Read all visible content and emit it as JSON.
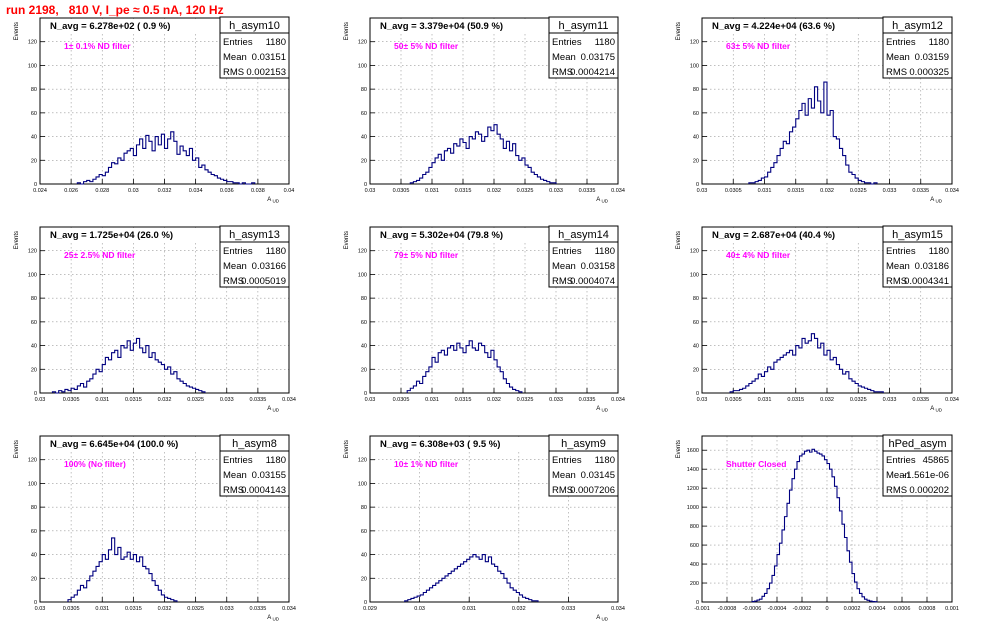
{
  "run_title": "run 2198,   810 V, I_pe ≈ 0.5 nA, 120 Hz",
  "chart_data": [
    {
      "type": "histogram",
      "name": "h_asym10",
      "stats": {
        "Entries": "1180",
        "Mean": "0.03151",
        "RMS": "0.002153"
      },
      "navg": "N_avg = 6.278e+02 ( 0.9 %)",
      "filter": "1± 0.1% ND filter",
      "xlabel": "A_UD",
      "ylabel": "Events",
      "xlim": [
        0.024,
        0.04
      ],
      "ylim": [
        0,
        140
      ],
      "xticks": [
        0.024,
        0.026,
        0.028,
        0.03,
        0.032,
        0.034,
        0.036,
        0.038,
        0.04
      ],
      "xtick_labels": [
        "0.024",
        "0.026",
        "0.028",
        "0.03",
        "0.032",
        "0.034",
        "0.036",
        "0.038",
        "0.04"
      ],
      "yticks": [
        0,
        20,
        40,
        60,
        80,
        100,
        120
      ],
      "ytick_labels": [
        "0",
        "20",
        "40",
        "60",
        "80",
        "100",
        "120"
      ],
      "bin_start": 0.0264,
      "bin_width": 0.0002,
      "values": [
        1,
        0,
        2,
        3,
        2,
        4,
        6,
        8,
        7,
        10,
        14,
        18,
        17,
        22,
        20,
        26,
        28,
        30,
        24,
        33,
        38,
        30,
        41,
        36,
        28,
        40,
        33,
        42,
        30,
        38,
        44,
        36,
        25,
        32,
        28,
        24,
        30,
        20,
        22,
        14,
        16,
        12,
        10,
        8,
        7,
        5,
        4,
        3,
        2,
        2,
        1,
        1,
        0,
        1,
        0,
        0,
        1
      ]
    },
    {
      "type": "histogram",
      "name": "h_asym11",
      "stats": {
        "Entries": "1180",
        "Mean": "0.03175",
        "RMS": "0.0004214"
      },
      "navg": "N_avg = 3.379e+04 (50.9 %)",
      "filter": "50± 5% ND filter",
      "xlabel": "A_UD",
      "ylabel": "Events",
      "xlim": [
        0.03,
        0.034
      ],
      "ylim": [
        0,
        140
      ],
      "xticks": [
        0.03,
        0.0305,
        0.031,
        0.0315,
        0.032,
        0.0325,
        0.033,
        0.0335,
        0.034
      ],
      "xtick_labels": [
        "0.03",
        "0.0305",
        "0.031",
        "0.0315",
        "0.032",
        "0.0325",
        "0.033",
        "0.0335",
        "0.034"
      ],
      "yticks": [
        0,
        20,
        40,
        60,
        80,
        100,
        120
      ],
      "ytick_labels": [
        "0",
        "20",
        "40",
        "60",
        "80",
        "100",
        "120"
      ],
      "bin_start": 0.03065,
      "bin_width": 5e-05,
      "values": [
        1,
        2,
        3,
        5,
        8,
        10,
        14,
        18,
        22,
        25,
        20,
        28,
        30,
        26,
        34,
        32,
        38,
        35,
        30,
        40,
        38,
        44,
        42,
        36,
        40,
        48,
        45,
        50,
        42,
        38,
        30,
        36,
        28,
        34,
        24,
        20,
        22,
        16,
        14,
        10,
        8,
        6,
        4,
        3,
        2,
        1,
        1
      ]
    },
    {
      "type": "histogram",
      "name": "h_asym12",
      "stats": {
        "Entries": "1180",
        "Mean": "0.03159",
        "RMS": "0.000325"
      },
      "navg": "N_avg = 4.224e+04 (63.6 %)",
      "filter": "63± 5% ND filter",
      "xlabel": "A_UD",
      "ylabel": "Events",
      "xlim": [
        0.03,
        0.034
      ],
      "ylim": [
        0,
        140
      ],
      "xticks": [
        0.03,
        0.0305,
        0.031,
        0.0315,
        0.032,
        0.0325,
        0.033,
        0.0335,
        0.034
      ],
      "xtick_labels": [
        "0.03",
        "0.0305",
        "0.031",
        "0.0315",
        "0.032",
        "0.0325",
        "0.033",
        "0.0335",
        "0.034"
      ],
      "yticks": [
        0,
        20,
        40,
        60,
        80,
        100,
        120
      ],
      "ytick_labels": [
        "0",
        "20",
        "40",
        "60",
        "80",
        "100",
        "120"
      ],
      "bin_start": 0.03075,
      "bin_width": 5e-05,
      "values": [
        1,
        1,
        2,
        3,
        5,
        6,
        10,
        14,
        18,
        24,
        30,
        36,
        34,
        44,
        48,
        55,
        62,
        68,
        58,
        72,
        64,
        82,
        70,
        60,
        86,
        58,
        62,
        40,
        38,
        30,
        24,
        16,
        10,
        8,
        5,
        3,
        2,
        1,
        1,
        0,
        1
      ]
    },
    {
      "type": "histogram",
      "name": "h_asym13",
      "stats": {
        "Entries": "1180",
        "Mean": "0.03166",
        "RMS": "0.0005019"
      },
      "navg": "N_avg = 1.725e+04 (26.0 %)",
      "filter": "25± 2.5% ND filter",
      "xlabel": "A_UD",
      "ylabel": "Events",
      "xlim": [
        0.03,
        0.034
      ],
      "ylim": [
        0,
        140
      ],
      "xticks": [
        0.03,
        0.0305,
        0.031,
        0.0315,
        0.032,
        0.0325,
        0.033,
        0.0335,
        0.034
      ],
      "xtick_labels": [
        "0.03",
        "0.0305",
        "0.031",
        "0.0315",
        "0.032",
        "0.0325",
        "0.033",
        "0.0335",
        "0.034"
      ],
      "yticks": [
        0,
        20,
        40,
        60,
        80,
        100,
        120
      ],
      "ytick_labels": [
        "0",
        "20",
        "40",
        "60",
        "80",
        "100",
        "120"
      ],
      "bin_start": 0.0302,
      "bin_width": 5e-05,
      "values": [
        1,
        0,
        2,
        1,
        3,
        2,
        4,
        3,
        6,
        8,
        5,
        10,
        12,
        16,
        20,
        18,
        24,
        30,
        28,
        34,
        36,
        30,
        40,
        38,
        44,
        36,
        42,
        46,
        38,
        34,
        40,
        30,
        34,
        28,
        26,
        24,
        20,
        22,
        16,
        18,
        12,
        10,
        8,
        6,
        5,
        4,
        3,
        2,
        1
      ]
    },
    {
      "type": "histogram",
      "name": "h_asym14",
      "stats": {
        "Entries": "1180",
        "Mean": "0.03158",
        "RMS": "0.0004074"
      },
      "navg": "N_avg = 5.302e+04 (79.8 %)",
      "filter": "79± 5% ND filter",
      "xlabel": "A_UD",
      "ylabel": "Events",
      "xlim": [
        0.03,
        0.034
      ],
      "ylim": [
        0,
        140
      ],
      "xticks": [
        0.03,
        0.0305,
        0.031,
        0.0315,
        0.032,
        0.0325,
        0.033,
        0.0335,
        0.034
      ],
      "xtick_labels": [
        "0.03",
        "0.0305",
        "0.031",
        "0.0315",
        "0.032",
        "0.0325",
        "0.033",
        "0.0335",
        "0.034"
      ],
      "yticks": [
        0,
        20,
        40,
        60,
        80,
        100,
        120
      ],
      "ytick_labels": [
        "0",
        "20",
        "40",
        "60",
        "80",
        "100",
        "120"
      ],
      "bin_start": 0.0306,
      "bin_width": 5e-05,
      "values": [
        2,
        4,
        6,
        10,
        8,
        14,
        18,
        22,
        30,
        26,
        34,
        36,
        32,
        38,
        40,
        36,
        42,
        38,
        34,
        40,
        44,
        38,
        36,
        42,
        40,
        34,
        30,
        36,
        28,
        22,
        18,
        12,
        8,
        5,
        3,
        2,
        1
      ]
    },
    {
      "type": "histogram",
      "name": "h_asym15",
      "stats": {
        "Entries": "1180",
        "Mean": "0.03186",
        "RMS": "0.0004341"
      },
      "navg": "N_avg = 2.687e+04 (40.4 %)",
      "filter": "40± 4% ND filter",
      "xlabel": "A_UD",
      "ylabel": "Events",
      "xlim": [
        0.03,
        0.034
      ],
      "ylim": [
        0,
        140
      ],
      "xticks": [
        0.03,
        0.0305,
        0.031,
        0.0315,
        0.032,
        0.0325,
        0.033,
        0.0335,
        0.034
      ],
      "xtick_labels": [
        "0.03",
        "0.0305",
        "0.031",
        "0.0315",
        "0.032",
        "0.0325",
        "0.033",
        "0.0335",
        "0.034"
      ],
      "yticks": [
        0,
        20,
        40,
        60,
        80,
        100,
        120
      ],
      "ytick_labels": [
        "0",
        "20",
        "40",
        "60",
        "80",
        "100",
        "120"
      ],
      "bin_start": 0.03045,
      "bin_width": 5e-05,
      "values": [
        1,
        2,
        2,
        3,
        4,
        6,
        8,
        10,
        12,
        16,
        14,
        18,
        22,
        20,
        26,
        28,
        30,
        32,
        34,
        36,
        32,
        40,
        38,
        46,
        42,
        44,
        50,
        46,
        38,
        42,
        32,
        36,
        28,
        30,
        24,
        20,
        16,
        18,
        12,
        10,
        8,
        6,
        5,
        4,
        3,
        2,
        1,
        1,
        1
      ]
    },
    {
      "type": "histogram",
      "name": "h_asym8",
      "stats": {
        "Entries": "1180",
        "Mean": "0.03155",
        "RMS": "0.0004143"
      },
      "navg": "N_avg = 6.645e+04 (100.0 %)",
      "filter": "100% (No filter)",
      "xlabel": "A_UD",
      "ylabel": "Events",
      "xlim": [
        0.03,
        0.034
      ],
      "ylim": [
        0,
        140
      ],
      "xticks": [
        0.03,
        0.0305,
        0.031,
        0.0315,
        0.032,
        0.0325,
        0.033,
        0.0335,
        0.034
      ],
      "xtick_labels": [
        "0.03",
        "0.0305",
        "0.031",
        "0.0315",
        "0.032",
        "0.0325",
        "0.033",
        "0.0335",
        "0.034"
      ],
      "yticks": [
        0,
        20,
        40,
        60,
        80,
        100,
        120
      ],
      "ytick_labels": [
        "0",
        "20",
        "40",
        "60",
        "80",
        "100",
        "120"
      ],
      "bin_start": 0.03045,
      "bin_width": 5e-05,
      "values": [
        2,
        4,
        6,
        10,
        14,
        12,
        18,
        22,
        26,
        30,
        34,
        40,
        36,
        44,
        54,
        40,
        46,
        36,
        38,
        42,
        36,
        40,
        34,
        38,
        30,
        28,
        24,
        18,
        14,
        10,
        6,
        4,
        3,
        2,
        1
      ]
    },
    {
      "type": "histogram",
      "name": "h_asym9",
      "stats": {
        "Entries": "1180",
        "Mean": "0.03145",
        "RMS": "0.0007206"
      },
      "navg": "N_avg = 6.308e+03 ( 9.5 %)",
      "filter": "10± 1% ND filter",
      "xlabel": "A_UD",
      "ylabel": "Events",
      "xlim": [
        0.029,
        0.034
      ],
      "ylim": [
        0,
        140
      ],
      "xticks": [
        0.029,
        0.03,
        0.031,
        0.032,
        0.033,
        0.034
      ],
      "xtick_labels": [
        "0.029",
        "0.03",
        "0.031",
        "0.032",
        "0.033",
        "0.034"
      ],
      "yticks": [
        0,
        20,
        40,
        60,
        80,
        100,
        120
      ],
      "ytick_labels": [
        "0",
        "20",
        "40",
        "60",
        "80",
        "100",
        "120"
      ],
      "bin_start": 0.0297,
      "bin_width": 6.25e-05,
      "values": [
        1,
        2,
        3,
        4,
        5,
        6,
        8,
        10,
        12,
        14,
        16,
        18,
        20,
        22,
        24,
        26,
        28,
        30,
        32,
        34,
        36,
        38,
        40,
        38,
        36,
        40,
        34,
        38,
        32,
        30,
        26,
        24,
        20,
        16,
        12,
        10,
        8,
        6,
        4,
        3,
        2,
        1,
        1
      ]
    },
    {
      "type": "histogram",
      "name": "hPed_asym",
      "stats": {
        "Entries": "45865",
        "Mean": "-1.561e-06",
        "RMS": "0.000202"
      },
      "navg": "",
      "filter": "Shutter Closed",
      "xlabel": "",
      "ylabel": "Events",
      "xlim": [
        -0.001,
        0.001
      ],
      "ylim": [
        0,
        1750
      ],
      "xticks": [
        -0.001,
        -0.0008,
        -0.0006,
        -0.0004,
        -0.0002,
        0,
        0.0002,
        0.0004,
        0.0006,
        0.0008,
        0.001
      ],
      "xtick_labels": [
        "-0.001",
        "-0.0008",
        "-0.0006",
        "-0.0004",
        "-0.0002",
        "0",
        "0.0002",
        "0.0004",
        "0.0006",
        "0.0008",
        "0.001"
      ],
      "yticks": [
        0,
        200,
        400,
        600,
        800,
        1000,
        1200,
        1400,
        1600
      ],
      "ytick_labels": [
        "0",
        "200",
        "400",
        "600",
        "800",
        "1000",
        "1200",
        "1400",
        "1600"
      ],
      "bin_start": -0.0006,
      "bin_width": 2e-05,
      "values": [
        5,
        10,
        20,
        30,
        60,
        90,
        140,
        200,
        280,
        380,
        500,
        620,
        760,
        900,
        1040,
        1180,
        1300,
        1400,
        1480,
        1540,
        1560,
        1590,
        1600,
        1580,
        1610,
        1590,
        1570,
        1560,
        1540,
        1500,
        1460,
        1400,
        1320,
        1220,
        1100,
        960,
        820,
        680,
        540,
        420,
        300,
        210,
        140,
        90,
        55,
        30,
        18,
        10,
        5,
        3
      ]
    }
  ]
}
